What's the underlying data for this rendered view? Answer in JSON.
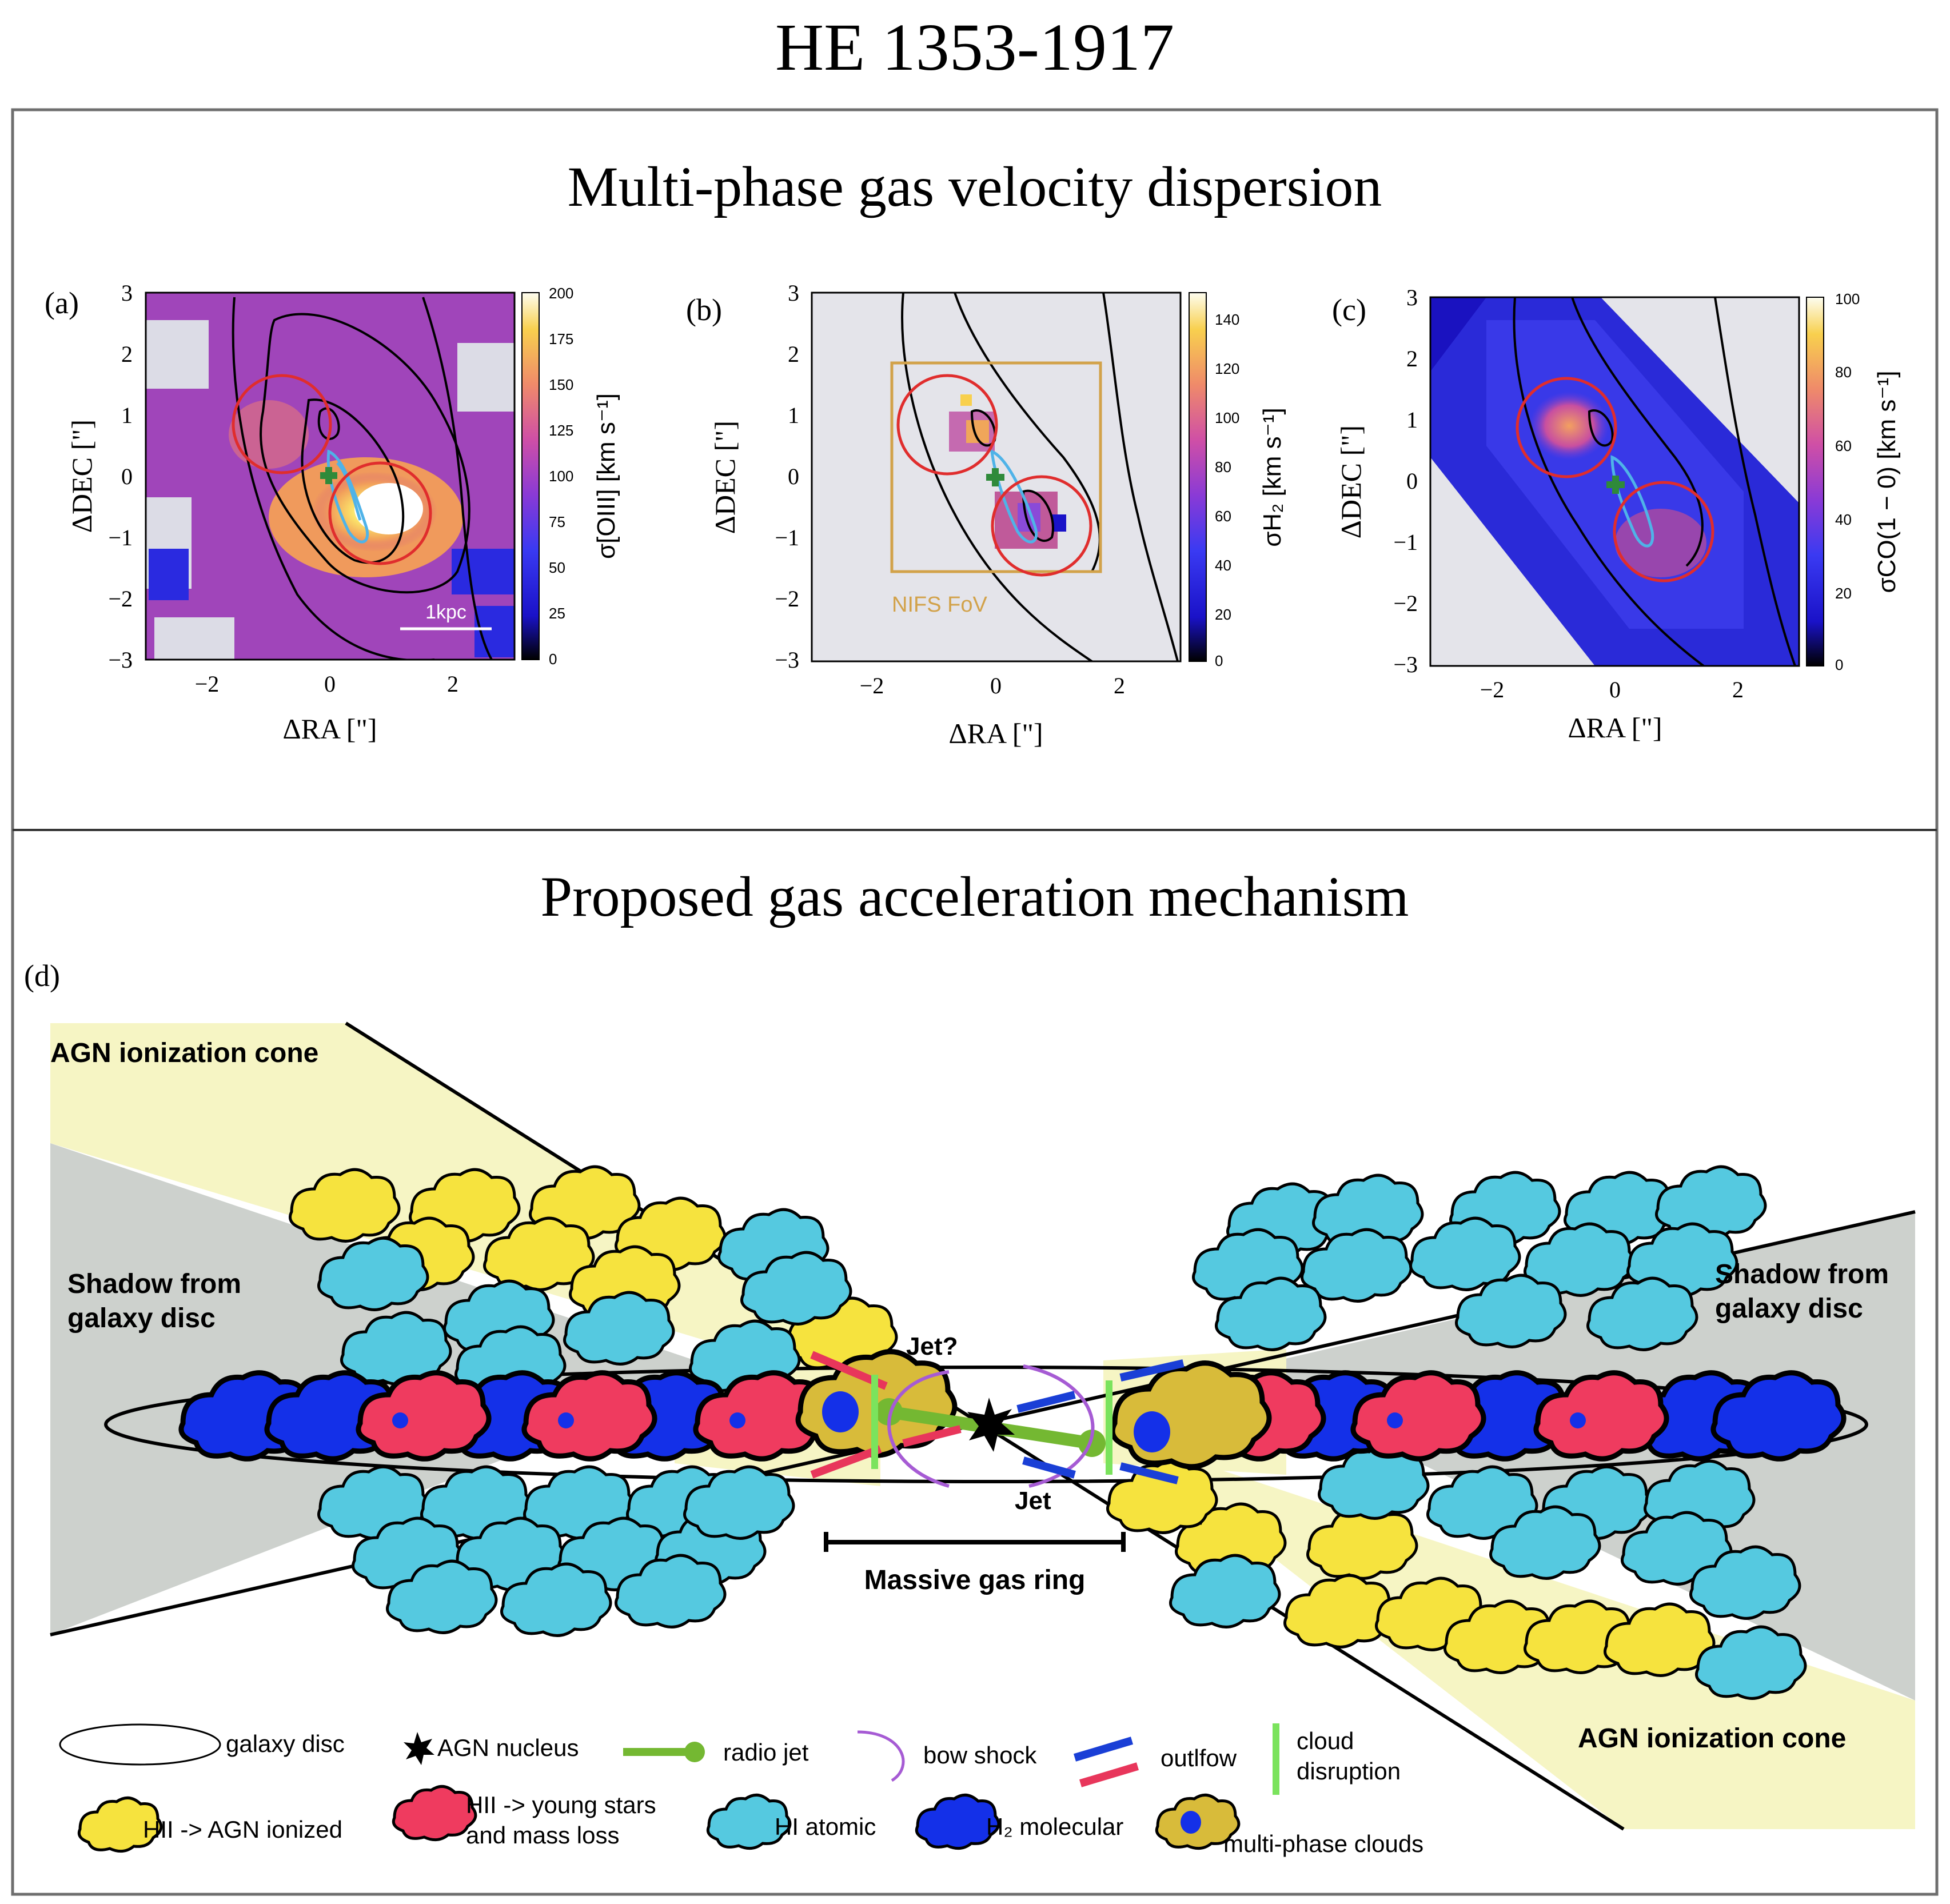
{
  "title": "HE 1353-1917",
  "section1": {
    "title": "Multi-phase gas velocity dispersion",
    "panels": [
      {
        "label": "(a)",
        "ylabel": "ΔDEC [\"]",
        "xlabel": "ΔRA [\"]",
        "xticks": [
          "−2",
          "0",
          "2"
        ],
        "yticks": [
          "3",
          "2",
          "1",
          "0",
          "−1",
          "−2",
          "−3"
        ],
        "cbar_ticks": [
          "200",
          "175",
          "150",
          "125",
          "100",
          "75",
          "50",
          "25",
          "0"
        ],
        "cbar_label": "σ[OIII] [km s⁻¹]",
        "cbar_range": [
          0,
          200
        ],
        "scale_label": "1kpc"
      },
      {
        "label": "(b)",
        "ylabel": "ΔDEC [\"]",
        "xlabel": "ΔRA [\"]",
        "xticks": [
          "−2",
          "0",
          "2"
        ],
        "yticks": [
          "3",
          "2",
          "1",
          "0",
          "−1",
          "−2",
          "−3"
        ],
        "cbar_ticks": [
          "140",
          "120",
          "100",
          "80",
          "60",
          "40",
          "20",
          "0"
        ],
        "cbar_label": "σH₂ [km s⁻¹]",
        "cbar_range": [
          0,
          150
        ],
        "fov_label": "NIFS FoV"
      },
      {
        "label": "(c)",
        "ylabel": "ΔDEC [\"]",
        "xlabel": "ΔRA [\"]",
        "xticks": [
          "−2",
          "0",
          "2"
        ],
        "yticks": [
          "3",
          "2",
          "1",
          "0",
          "−1",
          "−2",
          "−3"
        ],
        "cbar_ticks": [
          "100",
          "80",
          "60",
          "40",
          "20",
          "0"
        ],
        "cbar_label": "σCO(1 − 0) [km s⁻¹]",
        "cbar_range": [
          0,
          100
        ]
      }
    ]
  },
  "section2": {
    "title": "Proposed gas acceleration mechanism",
    "label": "(d)",
    "cone_label_left": "AGN ionization cone",
    "cone_label_right": "AGN ionization cone",
    "shadow_left": [
      "Shadow from",
      "galaxy disc"
    ],
    "shadow_right": [
      "Shadow from",
      "galaxy disc"
    ],
    "jet_left": "Jet?",
    "jet_right": "Jet",
    "ring_label": "Massive gas ring",
    "legend": {
      "galaxy_disc": "galaxy disc",
      "agn_nucleus": "AGN nucleus",
      "radio_jet": "radio jet",
      "bow_shock": "bow shock",
      "outflow": "outlfow",
      "cloud_disruption": [
        "cloud",
        "disruption"
      ],
      "hii_agn": "HII -> AGN ionized",
      "hii_stars": [
        "HII -> young stars",
        "and mass loss"
      ],
      "hi_atomic": "HI atomic",
      "h2_molecular": "H₂ molecular",
      "multiphase": "multi-phase clouds"
    }
  },
  "colors": {
    "cone": "#f6f5c4",
    "shadow": "#cdd1cd",
    "cloud_yellow": "#f6e33e",
    "cloud_cyan": "#55c9e0",
    "cloud_blue": "#1430e8",
    "cloud_red": "#ef3b5f",
    "multiphase": "#d8bb3a",
    "jet": "#74b832",
    "bow": "#a65bd4",
    "outflow_blue": "#1a3fd6",
    "outflow_red": "#e8365b",
    "disruption": "#7be35d",
    "red_circle": "#e02d2d",
    "cyan_contour": "#4fb3e8",
    "center_cross": "#2f8a3a",
    "fov_box": "#d2a24a"
  }
}
